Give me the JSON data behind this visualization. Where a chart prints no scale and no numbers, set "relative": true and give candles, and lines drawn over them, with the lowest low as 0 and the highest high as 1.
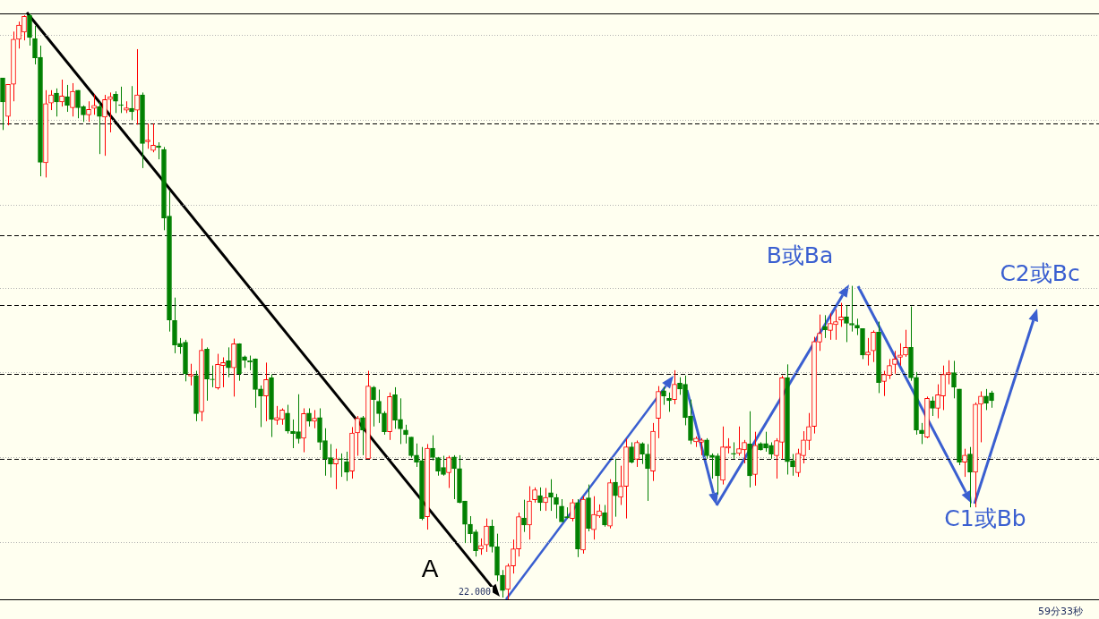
{
  "chart_data": {
    "type": "candlestick",
    "relative": true,
    "legend": false,
    "tick_labels": false,
    "categories": [
      null,
      null,
      null,
      null,
      null,
      null,
      null,
      null,
      null,
      null,
      null,
      null,
      null,
      null,
      null,
      null,
      null,
      null,
      null,
      null,
      null,
      null,
      null,
      null,
      null,
      null,
      null,
      null,
      null,
      null,
      null,
      null,
      null,
      null,
      null,
      null,
      null,
      null,
      null,
      null,
      null,
      null,
      null,
      null,
      null,
      null,
      null,
      null,
      null,
      null,
      null,
      null,
      null,
      null,
      null,
      null,
      null,
      null,
      null,
      null,
      null,
      null,
      null,
      null,
      null,
      null,
      null,
      null,
      null,
      null,
      null,
      null,
      null,
      null,
      null,
      null,
      null,
      null,
      null,
      null,
      null,
      null,
      null,
      null,
      null,
      null,
      null,
      null,
      null,
      null,
      null,
      null,
      null,
      null,
      null,
      null,
      null,
      null,
      null,
      null,
      null,
      null,
      null,
      null,
      null,
      null,
      null,
      null,
      null,
      null,
      null,
      null,
      null,
      null,
      null,
      null,
      null,
      null,
      null,
      null,
      null,
      null,
      null,
      null,
      null,
      null,
      null,
      null,
      null,
      null,
      null,
      null,
      null,
      null,
      null,
      null,
      null,
      null,
      null,
      null,
      null,
      null,
      null,
      null,
      null,
      null,
      null,
      null,
      null,
      null,
      null,
      null,
      null,
      null,
      null,
      null,
      null,
      null,
      null,
      null,
      null,
      null,
      null,
      null,
      null,
      null,
      null,
      null,
      null,
      null,
      null,
      null,
      null,
      null,
      null,
      null,
      null,
      null,
      null,
      null,
      null,
      null,
      null,
      null,
      null
    ],
    "colors": [
      "#008000",
      "#ff0000",
      "#ff0000",
      "#ff0000",
      "#ff0000",
      "#008000",
      "#008000",
      "#008000",
      "#ff0000",
      "#ff0000",
      "#008000",
      "#ff0000",
      "#008000",
      "#ff0000",
      "#008000",
      "#008000",
      "#ff0000",
      "#ff0000",
      "#008000",
      "#ff0000",
      "#ff0000",
      "#008000",
      "#008000",
      "#ff0000",
      "#008000",
      "#ff0000",
      "#008000",
      "#ff0000",
      "#ff0000",
      "#008000",
      "#008000",
      "#008000",
      "#008000",
      "#008000",
      "#008000",
      "#ff0000",
      "#008000",
      "#ff0000",
      "#008000",
      "#008000",
      "#ff0000",
      "#ff0000",
      "#008000",
      "#ff0000",
      "#008000",
      "#008000",
      "#008000",
      "#008000",
      "#008000",
      "#ff0000",
      "#008000",
      "#ff0000",
      "#ff0000",
      "#008000",
      "#008000",
      "#008000",
      "#ff0000",
      "#008000",
      "#ff0000",
      "#008000",
      "#008000",
      "#008000",
      "#ff0000",
      "#008000",
      "#008000",
      "#ff0000",
      "#ff0000",
      "#008000",
      "#ff0000",
      "#008000",
      "#008000",
      "#008000",
      "#ff0000",
      "#008000",
      "#008000",
      "#008000",
      "#008000",
      "#008000",
      "#008000",
      "#ff0000",
      "#008000",
      "#008000",
      "#008000",
      "#ff0000",
      "#008000",
      "#008000",
      "#008000",
      "#008000",
      "#008000",
      "#ff0000",
      "#ff0000",
      "#008000",
      "#008000",
      "#008000",
      "#ff0000",
      "#ff0000",
      "#ff0000",
      "#008000",
      "#ff0000",
      "#ff0000",
      "#008000",
      "#ff0000",
      "#008000",
      "#008000",
      "#008000",
      "#008000",
      "#ff0000",
      "#008000",
      "#ff0000",
      "#008000",
      "#ff0000",
      "#ff0000",
      "#008000",
      "#ff0000",
      "#008000",
      "#ff0000",
      "#ff0000",
      "#008000",
      "#ff0000",
      "#008000",
      "#008000",
      "#ff0000",
      "#ff0000",
      "#008000",
      "#008000",
      "#ff0000",
      "#008000",
      "#008000",
      "#008000",
      "#ff0000",
      "#ff0000",
      "#008000",
      "#008000",
      "#008000",
      "#ff0000",
      "#ff0000",
      "#008000",
      "#ff0000",
      "#ff0000",
      "#008000",
      "#ff0000",
      "#008000",
      "#008000",
      "#008000",
      "#ff0000",
      "#ff0000",
      "#008000",
      "#008000",
      "#ff0000",
      "#ff0000",
      "#ff0000",
      "#ff0000",
      "#ff0000",
      "#008000",
      "#ff0000",
      "#ff0000",
      "#ff0000",
      "#008000",
      "#008000",
      "#008000",
      "#008000",
      "#ff0000",
      "#ff0000",
      "#008000",
      "#ff0000",
      "#ff0000",
      "#ff0000",
      "#ff0000",
      "#ff0000",
      "#008000",
      "#008000",
      "#008000",
      "#ff0000",
      "#008000",
      "#ff0000",
      "#ff0000",
      "#ff0000",
      "#008000",
      "#008000",
      "#ff0000",
      "#008000",
      "#ff0000",
      "#ff0000",
      "#008000",
      "#008000"
    ],
    "ohlc": [
      [
        0.89,
        0.89,
        0.801,
        0.849
      ],
      [
        0.824,
        0.879,
        0.809,
        0.879
      ],
      [
        0.879,
        0.969,
        0.85,
        0.956
      ],
      [
        0.956,
        0.986,
        0.94,
        0.98
      ],
      [
        0.968,
        0.997,
        0.954,
        0.995
      ],
      [
        0.997,
        1.0,
        0.945,
        0.959
      ],
      [
        0.957,
        0.979,
        0.913,
        0.924
      ],
      [
        0.925,
        0.945,
        0.722,
        0.746
      ],
      [
        0.745,
        0.869,
        0.72,
        0.846
      ],
      [
        0.847,
        0.869,
        0.835,
        0.861
      ],
      [
        0.864,
        0.872,
        0.824,
        0.849
      ],
      [
        0.849,
        0.887,
        0.841,
        0.859
      ],
      [
        0.858,
        0.878,
        0.832,
        0.843
      ],
      [
        0.839,
        0.881,
        0.824,
        0.867
      ],
      [
        0.869,
        0.869,
        0.821,
        0.839
      ],
      [
        0.841,
        0.843,
        0.815,
        0.827
      ],
      [
        0.827,
        0.85,
        0.815,
        0.836
      ],
      [
        0.838,
        0.862,
        0.827,
        0.843
      ],
      [
        0.841,
        0.849,
        0.76,
        0.824
      ],
      [
        0.823,
        0.861,
        0.757,
        0.853
      ],
      [
        0.853,
        0.865,
        0.797,
        0.858
      ],
      [
        0.862,
        0.867,
        0.83,
        0.85
      ],
      [
        0.844,
        0.875,
        0.83,
        0.843
      ],
      [
        0.835,
        0.85,
        0.83,
        0.839
      ],
      [
        0.838,
        0.876,
        0.818,
        0.832
      ],
      [
        0.835,
        0.939,
        0.81,
        0.861
      ],
      [
        0.861,
        0.865,
        0.736,
        0.778
      ],
      [
        0.781,
        0.812,
        0.769,
        0.784
      ],
      [
        0.766,
        0.812,
        0.763,
        0.775
      ],
      [
        0.774,
        0.78,
        0.751,
        0.771
      ],
      [
        0.768,
        0.772,
        0.63,
        0.651
      ],
      [
        0.654,
        0.697,
        0.457,
        0.477
      ],
      [
        0.476,
        0.515,
        0.42,
        0.434
      ],
      [
        0.437,
        0.446,
        0.419,
        0.431
      ],
      [
        0.439,
        0.443,
        0.372,
        0.385
      ],
      [
        0.381,
        0.402,
        0.365,
        0.384
      ],
      [
        0.382,
        0.39,
        0.304,
        0.317
      ],
      [
        0.32,
        0.445,
        0.304,
        0.425
      ],
      [
        0.427,
        0.43,
        0.339,
        0.376
      ],
      [
        0.376,
        0.399,
        0.362,
        0.375
      ],
      [
        0.361,
        0.419,
        0.358,
        0.401
      ],
      [
        0.399,
        0.413,
        0.362,
        0.404
      ],
      [
        0.407,
        0.43,
        0.379,
        0.395
      ],
      [
        0.395,
        0.445,
        0.346,
        0.436
      ],
      [
        0.436,
        0.437,
        0.373,
        0.385
      ],
      [
        0.414,
        0.416,
        0.395,
        0.408
      ],
      [
        0.407,
        0.416,
        0.391,
        0.405
      ],
      [
        0.41,
        0.411,
        0.327,
        0.358
      ],
      [
        0.359,
        0.365,
        0.294,
        0.347
      ],
      [
        0.347,
        0.404,
        0.304,
        0.375
      ],
      [
        0.378,
        0.384,
        0.277,
        0.307
      ],
      [
        0.306,
        0.33,
        0.298,
        0.31
      ],
      [
        0.307,
        0.326,
        0.298,
        0.323
      ],
      [
        0.318,
        0.332,
        0.283,
        0.287
      ],
      [
        0.287,
        0.307,
        0.258,
        0.283
      ],
      [
        0.286,
        0.35,
        0.266,
        0.274
      ],
      [
        0.275,
        0.326,
        0.251,
        0.317
      ],
      [
        0.318,
        0.326,
        0.295,
        0.304
      ],
      [
        0.304,
        0.323,
        0.292,
        0.309
      ],
      [
        0.31,
        0.326,
        0.255,
        0.268
      ],
      [
        0.271,
        0.292,
        0.211,
        0.24
      ],
      [
        0.242,
        0.265,
        0.208,
        0.231
      ],
      [
        0.231,
        0.257,
        0.188,
        0.24
      ],
      [
        0.24,
        0.249,
        0.209,
        0.239
      ],
      [
        0.235,
        0.252,
        0.202,
        0.217
      ],
      [
        0.219,
        0.294,
        0.206,
        0.284
      ],
      [
        0.284,
        0.313,
        0.245,
        0.309
      ],
      [
        0.31,
        0.313,
        0.246,
        0.289
      ],
      [
        0.24,
        0.39,
        0.24,
        0.364
      ],
      [
        0.362,
        0.364,
        0.295,
        0.341
      ],
      [
        0.338,
        0.358,
        0.301,
        0.317
      ],
      [
        0.318,
        0.321,
        0.281,
        0.286
      ],
      [
        0.286,
        0.353,
        0.272,
        0.346
      ],
      [
        0.349,
        0.362,
        0.291,
        0.306
      ],
      [
        0.307,
        0.343,
        0.265,
        0.291
      ],
      [
        0.289,
        0.298,
        0.266,
        0.281
      ],
      [
        0.277,
        0.277,
        0.242,
        0.245
      ],
      [
        0.246,
        0.266,
        0.226,
        0.234
      ],
      [
        0.237,
        0.26,
        0.135,
        0.138
      ],
      [
        0.141,
        0.265,
        0.119,
        0.258
      ],
      [
        0.258,
        0.28,
        0.237,
        0.242
      ],
      [
        0.242,
        0.243,
        0.211,
        0.219
      ],
      [
        0.225,
        0.245,
        0.211,
        0.213
      ],
      [
        0.216,
        0.245,
        0.19,
        0.242
      ],
      [
        0.243,
        0.246,
        0.171,
        0.223
      ],
      [
        0.223,
        0.246,
        0.164,
        0.165
      ],
      [
        0.168,
        0.168,
        0.096,
        0.128
      ],
      [
        0.128,
        0.142,
        0.096,
        0.112
      ],
      [
        0.115,
        0.119,
        0.073,
        0.083
      ],
      [
        0.086,
        0.104,
        0.076,
        0.092
      ],
      [
        0.093,
        0.138,
        0.081,
        0.125
      ],
      [
        0.125,
        0.136,
        0.08,
        0.09
      ],
      [
        0.09,
        0.112,
        0.031,
        0.041
      ],
      [
        0.041,
        0.05,
        0.003,
        0.015
      ],
      [
        0.017,
        0.061,
        0.0,
        0.057
      ],
      [
        0.057,
        0.102,
        0.044,
        0.086
      ],
      [
        0.086,
        0.148,
        0.073,
        0.141
      ],
      [
        0.139,
        0.17,
        0.115,
        0.127
      ],
      [
        0.127,
        0.193,
        0.102,
        0.168
      ],
      [
        0.17,
        0.191,
        0.165,
        0.187
      ],
      [
        0.177,
        0.191,
        0.151,
        0.165
      ],
      [
        0.165,
        0.19,
        0.151,
        0.174
      ],
      [
        0.182,
        0.205,
        0.151,
        0.174
      ],
      [
        0.174,
        0.18,
        0.138,
        0.162
      ],
      [
        0.159,
        0.171,
        0.132,
        0.132
      ],
      [
        0.141,
        0.157,
        0.138,
        0.139
      ],
      [
        0.138,
        0.171,
        0.133,
        0.165
      ],
      [
        0.165,
        0.171,
        0.072,
        0.086
      ],
      [
        0.084,
        0.176,
        0.078,
        0.171
      ],
      [
        0.173,
        0.196,
        0.116,
        0.121
      ],
      [
        0.119,
        0.176,
        0.102,
        0.145
      ],
      [
        0.142,
        0.162,
        0.139,
        0.151
      ],
      [
        0.148,
        0.161,
        0.124,
        0.127
      ],
      [
        0.125,
        0.205,
        0.121,
        0.199
      ],
      [
        0.2,
        0.24,
        0.141,
        0.177
      ],
      [
        0.174,
        0.228,
        0.161,
        0.193
      ],
      [
        0.193,
        0.274,
        0.138,
        0.26
      ],
      [
        0.26,
        0.268,
        0.232,
        0.234
      ],
      [
        0.239,
        0.271,
        0.226,
        0.268
      ],
      [
        0.266,
        0.268,
        0.231,
        0.248
      ],
      [
        0.248,
        0.265,
        0.168,
        0.223
      ],
      [
        0.219,
        0.301,
        0.202,
        0.287
      ],
      [
        0.309,
        0.364,
        0.275,
        0.355
      ],
      [
        0.356,
        0.362,
        0.332,
        0.347
      ],
      [
        0.343,
        0.353,
        0.32,
        0.339
      ],
      [
        0.341,
        0.391,
        0.333,
        0.367
      ],
      [
        0.369,
        0.379,
        0.349,
        0.359
      ],
      [
        0.367,
        0.382,
        0.297,
        0.31
      ],
      [
        0.313,
        0.341,
        0.265,
        0.271
      ],
      [
        0.269,
        0.278,
        0.26,
        0.275
      ],
      [
        0.268,
        0.275,
        0.246,
        0.272
      ],
      [
        0.272,
        0.275,
        0.24,
        0.245
      ],
      [
        0.246,
        0.249,
        0.206,
        0.242
      ],
      [
        0.245,
        0.249,
        0.179,
        0.211
      ],
      [
        0.203,
        0.295,
        0.196,
        0.26
      ],
      [
        0.258,
        0.275,
        0.249,
        0.261
      ],
      [
        0.249,
        0.268,
        0.24,
        0.248
      ],
      [
        0.249,
        0.295,
        0.245,
        0.257
      ],
      [
        0.255,
        0.272,
        0.232,
        0.268
      ],
      [
        0.265,
        0.321,
        0.191,
        0.211
      ],
      [
        0.213,
        0.286,
        0.194,
        0.263
      ],
      [
        0.266,
        0.268,
        0.254,
        0.255
      ],
      [
        0.266,
        0.286,
        0.252,
        0.258
      ],
      [
        0.263,
        0.268,
        0.24,
        0.248
      ],
      [
        0.245,
        0.275,
        0.206,
        0.271
      ],
      [
        0.268,
        0.382,
        0.24,
        0.378
      ],
      [
        0.378,
        0.401,
        0.213,
        0.235
      ],
      [
        0.237,
        0.248,
        0.211,
        0.226
      ],
      [
        0.216,
        0.257,
        0.209,
        0.249
      ],
      [
        0.245,
        0.287,
        0.232,
        0.272
      ],
      [
        0.271,
        0.318,
        0.255,
        0.295
      ],
      [
        0.295,
        0.448,
        0.283,
        0.44
      ],
      [
        0.439,
        0.486,
        0.424,
        0.454
      ],
      [
        0.466,
        0.485,
        0.446,
        0.46
      ],
      [
        0.459,
        0.488,
        0.443,
        0.471
      ],
      [
        0.469,
        0.495,
        0.443,
        0.474
      ],
      [
        0.477,
        0.506,
        0.465,
        0.482
      ],
      [
        0.482,
        0.502,
        0.439,
        0.471
      ],
      [
        0.471,
        0.535,
        0.457,
        0.468
      ],
      [
        0.468,
        0.479,
        0.451,
        0.463
      ],
      [
        0.462,
        0.462,
        0.41,
        0.417
      ],
      [
        0.417,
        0.446,
        0.399,
        0.422
      ],
      [
        0.424,
        0.459,
        0.405,
        0.456
      ],
      [
        0.456,
        0.474,
        0.352,
        0.37
      ],
      [
        0.372,
        0.39,
        0.347,
        0.384
      ],
      [
        0.382,
        0.41,
        0.376,
        0.399
      ],
      [
        0.401,
        0.424,
        0.385,
        0.41
      ],
      [
        0.413,
        0.437,
        0.399,
        0.417
      ],
      [
        0.417,
        0.46,
        0.414,
        0.43
      ],
      [
        0.43,
        0.5,
        0.373,
        0.378
      ],
      [
        0.379,
        0.388,
        0.281,
        0.289
      ],
      [
        0.289,
        0.301,
        0.265,
        0.283
      ],
      [
        0.277,
        0.346,
        0.275,
        0.343
      ],
      [
        0.339,
        0.346,
        0.313,
        0.326
      ],
      [
        0.326,
        0.367,
        0.309,
        0.349
      ],
      [
        0.347,
        0.399,
        0.323,
        0.384
      ],
      [
        0.384,
        0.408,
        0.367,
        0.387
      ],
      [
        0.387,
        0.407,
        0.343,
        0.362
      ],
      [
        0.359,
        0.359,
        0.229,
        0.234
      ],
      [
        0.234,
        0.257,
        0.209,
        0.246
      ],
      [
        0.248,
        0.26,
        0.157,
        0.217
      ],
      [
        0.217,
        0.336,
        0.157,
        0.333
      ],
      [
        0.333,
        0.355,
        0.268,
        0.347
      ],
      [
        0.347,
        0.359,
        0.323,
        0.335
      ],
      [
        0.352,
        0.356,
        0.327,
        0.339
      ]
    ],
    "ref_lines": [
      {
        "axis": "y",
        "value": 1,
        "color": "#000000",
        "line_style": "solid"
      },
      {
        "axis": "y",
        "value": 0,
        "color": "#000000",
        "line_style": "solid"
      },
      {
        "axis": "y",
        "value": 0.812,
        "color": "#000000",
        "line_style": "dashed"
      },
      {
        "axis": "y",
        "value": 0.621,
        "color": "#000000",
        "line_style": "dashed"
      },
      {
        "axis": "y",
        "value": 0.502,
        "color": "#000000",
        "line_style": "dashed"
      },
      {
        "axis": "y",
        "value": 0.384,
        "color": "#000000",
        "line_style": "dashed"
      },
      {
        "axis": "y",
        "value": 0.239,
        "color": "#000000",
        "line_style": "dashed"
      },
      {
        "axis": "y",
        "value": 0.963,
        "color": "#b4b4b4",
        "line_style": "dotted"
      },
      {
        "axis": "y",
        "value": 0.818,
        "color": "#b4b4b4",
        "line_style": "dotted"
      },
      {
        "axis": "y",
        "value": 0.674,
        "color": "#b4b4b4",
        "line_style": "dotted"
      },
      {
        "axis": "y",
        "value": 0.531,
        "color": "#b4b4b4",
        "line_style": "dotted"
      },
      {
        "axis": "y",
        "value": 0.388,
        "color": "#b4b4b4",
        "line_style": "dotted"
      },
      {
        "axis": "y",
        "value": 0.242,
        "color": "#b4b4b4",
        "line_style": "dotted"
      },
      {
        "axis": "y",
        "value": 0.098,
        "color": "#b4b4b4",
        "line_style": "dotted"
      }
    ],
    "annotations": [
      "A",
      "B或Ba",
      "C2或Bc",
      "C1或Bb",
      "59分33秒",
      "22.000"
    ]
  }
}
